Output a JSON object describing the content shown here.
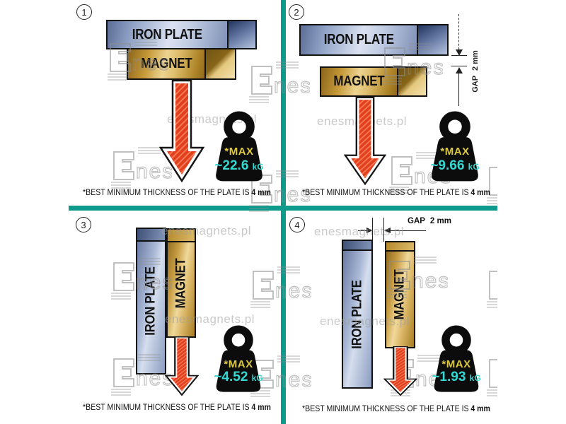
{
  "watermark": {
    "site_text": "enesmagnets.pl",
    "logo_text": "nes"
  },
  "colors": {
    "divider": "#0d9b8d",
    "iron_plate": "#9fb0d0",
    "magnet": "#d8b05c",
    "arrow": "#e23f1f",
    "weight_body": "#0c0c0c",
    "weight_max": "#ddc93d",
    "weight_value": "#35d8d2"
  },
  "panels": [
    {
      "number": "1",
      "plate_label": "IRON PLATE",
      "magnet_label": "MAGNET",
      "weight": {
        "max_label": "*MAX",
        "value": "~22.6",
        "unit": "kG"
      },
      "caption_prefix": "*BEST MINIMUM THICKNESS OF THE PLATE IS",
      "caption_bold": "4 mm"
    },
    {
      "number": "2",
      "plate_label": "IRON PLATE",
      "magnet_label": "MAGNET",
      "gap_label": "GAP",
      "gap_value": "2 mm",
      "weight": {
        "max_label": "*MAX",
        "value": "~9.66",
        "unit": "kG"
      },
      "caption_prefix": "*BEST MINIMUM THICKNESS OF THE PLATE IS",
      "caption_bold": "4 mm"
    },
    {
      "number": "3",
      "plate_label": "IRON PLATE",
      "magnet_label": "MAGNET",
      "weight": {
        "max_label": "*MAX",
        "value": "~4.52",
        "unit": "kG"
      },
      "caption_prefix": "*BEST MINIMUM THICKNESS OF THE PLATE IS",
      "caption_bold": "4 mm"
    },
    {
      "number": "4",
      "plate_label": "IRON PLATE",
      "magnet_label": "MAGNET",
      "gap_label": "GAP",
      "gap_value": "2 mm",
      "weight": {
        "max_label": "*MAX",
        "value": "~1.93",
        "unit": "kG"
      },
      "caption_prefix": "*BEST MINIMUM THICKNESS OF THE PLATE IS",
      "caption_bold": "4 mm"
    }
  ]
}
